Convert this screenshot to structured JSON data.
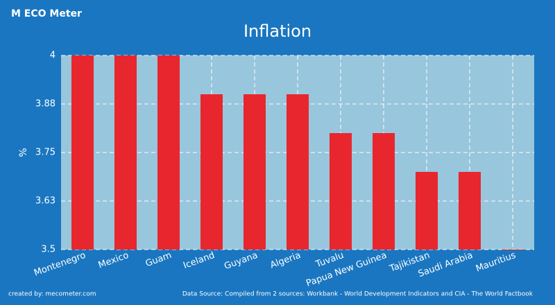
{
  "logo": "M ECO Meter",
  "chart_data": {
    "type": "bar",
    "title": "Inflation",
    "y_label": "%",
    "categories": [
      "Montenegro",
      "Mexico",
      "Guam",
      "Iceland",
      "Guyana",
      "Algeria",
      "Tuvalu",
      "Papua New Guinea",
      "Tajikistan",
      "Saudi Arabia",
      "Mauritius"
    ],
    "values": [
      4,
      4,
      4,
      3.9,
      3.9,
      3.9,
      3.8,
      3.8,
      3.7,
      3.7,
      3.5
    ],
    "color": "#e8262e",
    "ylim": [
      3.5,
      4
    ],
    "yticks": [
      3.5,
      {
        "value": 3.625,
        "label": "3.63"
      },
      3.75,
      {
        "value": 3.875,
        "label": "3.88"
      },
      4
    ],
    "grid": true
  },
  "footer": {
    "left": "created by: mecometer.com",
    "right": "Data Source: Compiled from 2 sources: Workbank - World Development Indicators and CIA - The World Factbook"
  }
}
